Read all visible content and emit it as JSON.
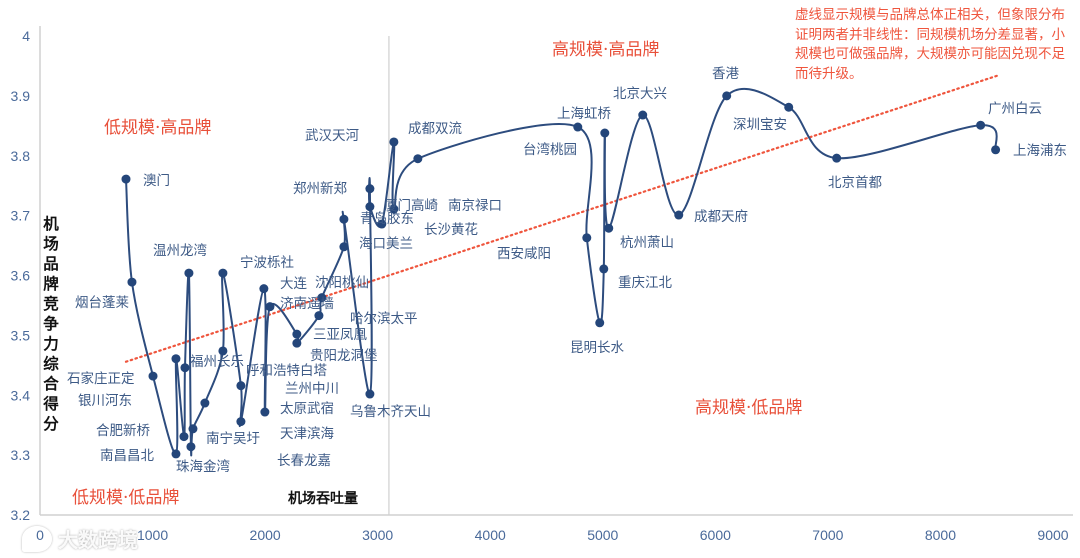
{
  "chart_data": {
    "type": "line",
    "xlabel": "机场吞吐量",
    "ylabel": "机场品牌竞争力综合得分",
    "xlim": [
      0,
      9000
    ],
    "ylim": [
      3.2,
      4
    ],
    "xticks": [
      "0",
      "1000",
      "2000",
      "3000",
      "4000",
      "5000",
      "6000",
      "7000",
      "8000",
      "9000"
    ],
    "yticks": [
      "3.2",
      "3.3",
      "3.4",
      "3.5",
      "3.6",
      "3.7",
      "3.8",
      "3.9",
      "4"
    ],
    "grid": false,
    "smooth": true,
    "quadrant_divider_x": 3100,
    "series_color": "#24467a",
    "trend_color": "#ef553d",
    "trendline": {
      "style": "dotted",
      "points": [
        [
          764,
          3.456
        ],
        [
          8526,
          3.935
        ]
      ]
    },
    "points": [
      {
        "name": "澳门",
        "x": 764,
        "y": 3.761
      },
      {
        "name": "烟台蓬莱",
        "x": 817,
        "y": 3.589
      },
      {
        "name": "石家庄正定",
        "x": 1004,
        "y": 3.432
      },
      {
        "name": "南昌昌北",
        "x": 1208,
        "y": 3.302
      },
      {
        "name": "银川河东",
        "x": 1208,
        "y": 3.461
      },
      {
        "name": "合肥新桥",
        "x": 1279,
        "y": 3.331
      },
      {
        "name": "兰州中川",
        "x": 1288,
        "y": 3.446
      },
      {
        "name": "温州龙湾",
        "x": 1323,
        "y": 3.604
      },
      {
        "name": "珠海金湾",
        "x": 1341,
        "y": 3.314
      },
      {
        "name": "天津滨海",
        "x": 1359,
        "y": 3.344
      },
      {
        "name": "长春龙嘉",
        "x": 1465,
        "y": 3.387
      },
      {
        "name": "福州长乐",
        "x": 1625,
        "y": 3.474
      },
      {
        "name": "南京禄口",
        "x": 1625,
        "y": 3.604
      },
      {
        "name": "呼和浩特白塔",
        "x": 1785,
        "y": 3.416
      },
      {
        "name": "南宁吴圩",
        "x": 1785,
        "y": 3.356
      },
      {
        "name": "宁波栎社",
        "x": 1989,
        "y": 3.578
      },
      {
        "name": "太原武宿",
        "x": 1998,
        "y": 3.372
      },
      {
        "name": "大连",
        "x": 2043,
        "y": 3.548
      },
      {
        "name": "三亚凤凰",
        "x": 2282,
        "y": 3.502
      },
      {
        "name": "贵阳龙洞堡",
        "x": 2282,
        "y": 3.487
      },
      {
        "name": "济南遥墙",
        "x": 2478,
        "y": 3.533
      },
      {
        "name": "沈阳桃仙",
        "x": 2504,
        "y": 3.563
      },
      {
        "name": "海口美兰",
        "x": 2700,
        "y": 3.648
      },
      {
        "name": "哈尔滨太平",
        "x": 2700,
        "y": 3.694
      },
      {
        "name": "乌鲁木齐天山",
        "x": 2931,
        "y": 3.402
      },
      {
        "name": "郑州新郑",
        "x": 2931,
        "y": 3.745
      },
      {
        "name": "青岛胶东",
        "x": 2931,
        "y": 3.715
      },
      {
        "name": "长沙黄花",
        "x": 3037,
        "y": 3.686
      },
      {
        "name": "武汉天河",
        "x": 3144,
        "y": 3.823
      },
      {
        "name": "厦门高崎",
        "x": 3144,
        "y": 3.711
      },
      {
        "name": "成都双流",
        "x": 3357,
        "y": 3.795
      },
      {
        "name": "台湾桃园",
        "x": 4778,
        "y": 3.848
      },
      {
        "name": "西安咸阳",
        "x": 4858,
        "y": 3.663
      },
      {
        "name": "昆明长水",
        "x": 4973,
        "y": 3.521
      },
      {
        "name": "重庆江北",
        "x": 5009,
        "y": 3.611
      },
      {
        "name": "上海虹桥",
        "x": 5018,
        "y": 3.838
      },
      {
        "name": "杭州萧山",
        "x": 5053,
        "y": 3.679
      },
      {
        "name": "北京大兴",
        "x": 5355,
        "y": 3.868
      },
      {
        "name": "成都天府",
        "x": 5675,
        "y": 3.701
      },
      {
        "name": "香港",
        "x": 6101,
        "y": 3.9
      },
      {
        "name": "深圳宝安",
        "x": 6652,
        "y": 3.881
      },
      {
        "name": "北京首都",
        "x": 7078,
        "y": 3.796
      },
      {
        "name": "广州白云",
        "x": 8357,
        "y": 3.851
      },
      {
        "name": "上海浦东",
        "x": 8490,
        "y": 3.81
      }
    ]
  },
  "quadrants": {
    "low_scale_high_brand": "低规模·高品牌",
    "high_scale_high_brand": "高规模·高品牌",
    "low_scale_low_brand": "低规模·低品牌",
    "high_scale_low_brand": "高规模·低品牌"
  },
  "annotation": "虚线显示规模与品牌总体正相关，但象限分布证明两者并非线性：同规模机场分差显著，小规模也可做强品牌，大规模亦可能因兑现不足而待升级。",
  "watermark": "大数跨境"
}
